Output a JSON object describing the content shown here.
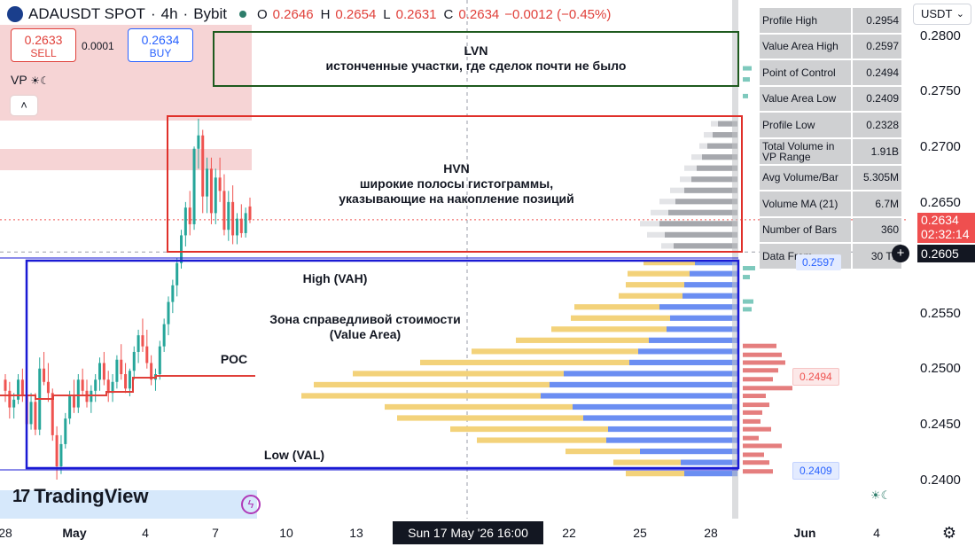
{
  "legend": {
    "symbol": "ADAUSDT SPOT",
    "interval": "4h",
    "exchange": "Bybit",
    "o_label": "O",
    "o": "0.2646",
    "h_label": "H",
    "h": "0.2654",
    "l_label": "L",
    "l": "0.2631",
    "c_label": "C",
    "c": "0.2634",
    "change": "−0.0012 (−0.45%)"
  },
  "trade": {
    "sell_price": "0.2633",
    "sell_label": "SELL",
    "spread": "0.0001",
    "buy_price": "0.2634",
    "buy_label": "BUY"
  },
  "indicator": {
    "name": "VP",
    "collapse_glyph": "˄"
  },
  "annotations": {
    "lvn_title": "LVN",
    "lvn_text": "истонченные участки, где сделок почти не было",
    "hvn_title": "HVN",
    "hvn_text1": "широкие полосы гистограммы,",
    "hvn_text2": "указывающие на накопление позиций",
    "vah": "High (VAH)",
    "value_area1": "Зона справедливой стоимости",
    "value_area2": "(Value Area)",
    "poc": "POC",
    "val": "Low (VAL)"
  },
  "stats": [
    {
      "label": "Profile High",
      "value": "0.2954"
    },
    {
      "label": "Value Area High",
      "value": "0.2597"
    },
    {
      "label": "Point of Control",
      "value": "0.2494"
    },
    {
      "label": "Value Area Low",
      "value": "0.2409"
    },
    {
      "label": "Profile Low",
      "value": "0.2328"
    },
    {
      "label": "Total Volume in VP Range",
      "value": "1.91B"
    },
    {
      "label": "Avg Volume/Bar",
      "value": "5.305M"
    },
    {
      "label": "Volume MA (21)",
      "value": "6.7M"
    },
    {
      "label": "Number of Bars",
      "value": "360"
    },
    {
      "label": "Data From",
      "value": "30 TF"
    }
  ],
  "price_scale": {
    "currency": "USDT",
    "ticks": [
      "0.2800",
      "0.2750",
      "0.2700",
      "0.2650",
      "0.2550",
      "0.2500",
      "0.2450",
      "0.2400"
    ],
    "last_price": "0.2634",
    "countdown": "02:32:14",
    "crosshair_price": "0.2605"
  },
  "vp_tags": {
    "poc": "0.2494",
    "val": "0.2409",
    "vah": "0.2597"
  },
  "time_axis": {
    "labels": [
      "28",
      "May",
      "4",
      "7",
      "10",
      "13",
      "22",
      "25",
      "28",
      "Jun",
      "4"
    ],
    "crosshair": "Sun 17 May '26   16:00"
  },
  "branding": {
    "name": "TradingView"
  },
  "chart_data": {
    "type": "candlestick",
    "ylim": [
      0.2385,
      0.2815
    ],
    "candles": [
      [
        0.249,
        0.2495,
        0.247,
        0.248
      ],
      [
        0.248,
        0.2488,
        0.2455,
        0.2465
      ],
      [
        0.2465,
        0.2478,
        0.2455,
        0.2472
      ],
      [
        0.2472,
        0.2495,
        0.2468,
        0.249
      ],
      [
        0.249,
        0.25,
        0.247,
        0.2475
      ],
      [
        0.2475,
        0.2482,
        0.2445,
        0.245
      ],
      [
        0.245,
        0.2478,
        0.2445,
        0.247
      ],
      [
        0.247,
        0.2478,
        0.244,
        0.2445
      ],
      [
        0.2445,
        0.251,
        0.244,
        0.25
      ],
      [
        0.25,
        0.2515,
        0.2485,
        0.2488
      ],
      [
        0.2488,
        0.2505,
        0.247,
        0.2478
      ],
      [
        0.2478,
        0.2482,
        0.2435,
        0.244
      ],
      [
        0.244,
        0.2448,
        0.24,
        0.2412
      ],
      [
        0.2412,
        0.244,
        0.2405,
        0.2432
      ],
      [
        0.2432,
        0.246,
        0.2428,
        0.2455
      ],
      [
        0.2455,
        0.248,
        0.245,
        0.2475
      ],
      [
        0.2475,
        0.249,
        0.246,
        0.2465
      ],
      [
        0.2465,
        0.2495,
        0.246,
        0.249
      ],
      [
        0.249,
        0.25,
        0.2475,
        0.248
      ],
      [
        0.248,
        0.249,
        0.2465,
        0.247
      ],
      [
        0.247,
        0.2485,
        0.246,
        0.248
      ],
      [
        0.248,
        0.2495,
        0.247,
        0.249
      ],
      [
        0.249,
        0.251,
        0.248,
        0.2505
      ],
      [
        0.2505,
        0.2515,
        0.2485,
        0.249
      ],
      [
        0.249,
        0.2498,
        0.247,
        0.2478
      ],
      [
        0.2478,
        0.2495,
        0.247,
        0.2488
      ],
      [
        0.2488,
        0.2512,
        0.2482,
        0.2508
      ],
      [
        0.2508,
        0.2522,
        0.249,
        0.2495
      ],
      [
        0.2495,
        0.2505,
        0.2478,
        0.2482
      ],
      [
        0.2482,
        0.25,
        0.2475,
        0.2498
      ],
      [
        0.2498,
        0.252,
        0.249,
        0.2515
      ],
      [
        0.2515,
        0.2535,
        0.2505,
        0.253
      ],
      [
        0.253,
        0.2545,
        0.2515,
        0.252
      ],
      [
        0.252,
        0.2535,
        0.25,
        0.2505
      ],
      [
        0.2505,
        0.2512,
        0.2485,
        0.249
      ],
      [
        0.249,
        0.25,
        0.248,
        0.2495
      ],
      [
        0.2495,
        0.2525,
        0.249,
        0.252
      ],
      [
        0.252,
        0.2545,
        0.2515,
        0.254
      ],
      [
        0.254,
        0.2565,
        0.253,
        0.256
      ],
      [
        0.256,
        0.258,
        0.255,
        0.2575
      ],
      [
        0.2575,
        0.26,
        0.2565,
        0.2595
      ],
      [
        0.2595,
        0.2625,
        0.259,
        0.262
      ],
      [
        0.262,
        0.265,
        0.261,
        0.2645
      ],
      [
        0.2645,
        0.266,
        0.262,
        0.263
      ],
      [
        0.263,
        0.27,
        0.2625,
        0.2698
      ],
      [
        0.2698,
        0.2725,
        0.268,
        0.271
      ],
      [
        0.271,
        0.2715,
        0.264,
        0.2655
      ],
      [
        0.2655,
        0.269,
        0.264,
        0.268
      ],
      [
        0.268,
        0.269,
        0.263,
        0.264
      ],
      [
        0.264,
        0.268,
        0.263,
        0.2672
      ],
      [
        0.2672,
        0.269,
        0.265,
        0.266
      ],
      [
        0.266,
        0.2675,
        0.262,
        0.2625
      ],
      [
        0.2625,
        0.266,
        0.2615,
        0.265
      ],
      [
        0.265,
        0.2665,
        0.2612,
        0.262
      ],
      [
        0.262,
        0.264,
        0.2612,
        0.2635
      ],
      [
        0.2635,
        0.2648,
        0.2618,
        0.2622
      ],
      [
        0.2622,
        0.2645,
        0.2618,
        0.264
      ],
      [
        0.2646,
        0.2654,
        0.2631,
        0.2634
      ]
    ],
    "poc": 0.2494,
    "vah": 0.2597,
    "val": 0.2409,
    "profile_rows": [
      {
        "price": 0.272,
        "up": 8,
        "down": 22
      },
      {
        "price": 0.271,
        "up": 10,
        "down": 28
      },
      {
        "price": 0.27,
        "up": 9,
        "down": 34
      },
      {
        "price": 0.269,
        "up": 12,
        "down": 40
      },
      {
        "price": 0.268,
        "up": 14,
        "down": 46
      },
      {
        "price": 0.267,
        "up": 13,
        "down": 52
      },
      {
        "price": 0.266,
        "up": 16,
        "down": 60
      },
      {
        "price": 0.265,
        "up": 18,
        "down": 70
      },
      {
        "price": 0.264,
        "up": 20,
        "down": 78
      },
      {
        "price": 0.263,
        "up": 22,
        "down": 88
      },
      {
        "price": 0.262,
        "up": 20,
        "down": 82
      },
      {
        "price": 0.261,
        "up": 14,
        "down": 72
      },
      {
        "price": 0.2595,
        "up": 58,
        "down": 48
      },
      {
        "price": 0.2585,
        "up": 70,
        "down": 54
      },
      {
        "price": 0.2575,
        "up": 66,
        "down": 60
      },
      {
        "price": 0.2565,
        "up": 72,
        "down": 62
      },
      {
        "price": 0.2555,
        "up": 96,
        "down": 88
      },
      {
        "price": 0.2545,
        "up": 112,
        "down": 76
      },
      {
        "price": 0.2535,
        "up": 130,
        "down": 80
      },
      {
        "price": 0.2525,
        "up": 150,
        "down": 100
      },
      {
        "price": 0.2515,
        "up": 188,
        "down": 112
      },
      {
        "price": 0.2505,
        "up": 236,
        "down": 122
      },
      {
        "price": 0.2495,
        "up": 238,
        "down": 196
      },
      {
        "price": 0.2485,
        "up": 266,
        "down": 212
      },
      {
        "price": 0.2475,
        "up": 270,
        "down": 222
      },
      {
        "price": 0.2465,
        "up": 212,
        "down": 186
      },
      {
        "price": 0.2455,
        "up": 210,
        "down": 174
      },
      {
        "price": 0.2445,
        "up": 178,
        "down": 146
      },
      {
        "price": 0.2435,
        "up": 146,
        "down": 148
      },
      {
        "price": 0.2425,
        "up": 84,
        "down": 110
      },
      {
        "price": 0.2415,
        "up": 76,
        "down": 64
      },
      {
        "price": 0.2405,
        "up": 66,
        "down": 60
      }
    ]
  }
}
